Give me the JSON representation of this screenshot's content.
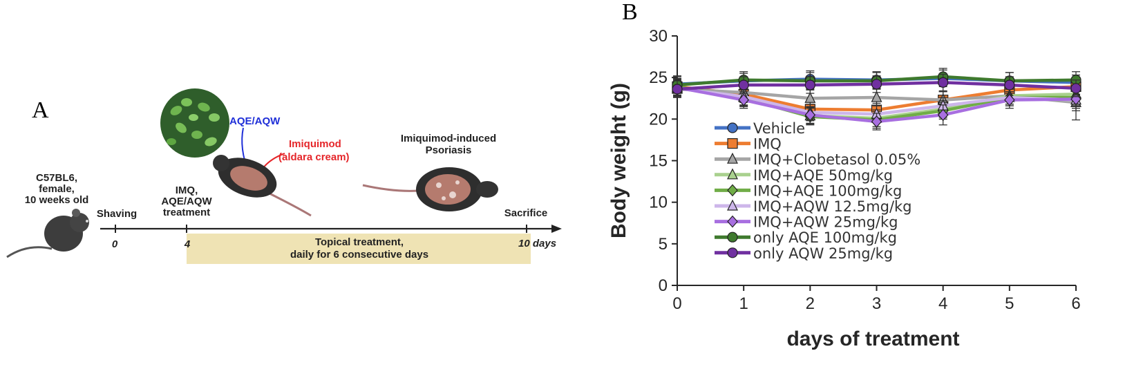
{
  "panel_a": {
    "letter": "A",
    "mouse_label": [
      "C57BL6,",
      "female,",
      "10 weeks old"
    ],
    "shaving_label": "Shaving",
    "imq_label": [
      "IMQ,",
      "AQE/AQW",
      "treatment"
    ],
    "aqe_aqw_label": "AQE/AQW",
    "imiquimod_label": [
      "Imiquimod",
      "(aldara cream)"
    ],
    "psoriasis_label": [
      "Imiquimod-induced",
      "Psoriasis"
    ],
    "sacrifice_label": "Sacrifice",
    "tick_0": "0",
    "tick_4": "4",
    "tick_10": "10 days",
    "treatment_box": [
      "Topical treatment,",
      "daily for 6 consecutive days"
    ],
    "colors": {
      "aqe": "#1f2fd8",
      "imiquimod": "#e5262a",
      "box": "#efe3b4"
    }
  },
  "chart_data": {
    "letter": "B",
    "type": "line",
    "xlabel": "days of treatment",
    "ylabel": "Body weight (g)",
    "x": [
      0,
      1,
      2,
      3,
      4,
      5,
      6
    ],
    "x_ticks": [
      "0",
      "1",
      "2",
      "3",
      "4",
      "5",
      "6"
    ],
    "ylim": [
      0,
      30
    ],
    "y_ticks": [
      "0",
      "5",
      "10",
      "15",
      "20",
      "25",
      "30"
    ],
    "grid": false,
    "legend_position": "center-left",
    "series": [
      {
        "name": "Vehicle",
        "color": "#4472c4",
        "marker": "circle",
        "values": [
          24.2,
          24.6,
          24.8,
          24.7,
          24.9,
          24.6,
          24.4
        ],
        "err": [
          1.0,
          0.9,
          1.0,
          1.0,
          1.0,
          1.0,
          0.9
        ]
      },
      {
        "name": "IMQ",
        "color": "#ed7d31",
        "marker": "square",
        "values": [
          23.9,
          23.0,
          21.2,
          21.1,
          22.3,
          23.5,
          23.9
        ],
        "err": [
          1.0,
          1.0,
          1.0,
          0.8,
          1.0,
          1.0,
          1.0
        ]
      },
      {
        "name": "IMQ+Clobetasol 0.05%",
        "color": "#a5a5a5",
        "marker": "triangle",
        "values": [
          23.6,
          23.2,
          22.5,
          22.6,
          22.3,
          22.8,
          22.0
        ],
        "err": [
          1.0,
          1.0,
          1.0,
          1.0,
          1.0,
          1.0,
          1.0
        ]
      },
      {
        "name": "IMQ+AQE 50mg/kg",
        "color": "#a9d18e",
        "marker": "triangle",
        "values": [
          23.8,
          22.6,
          20.4,
          20.1,
          21.2,
          22.8,
          23.0
        ],
        "err": [
          1.0,
          1.0,
          1.0,
          1.0,
          1.0,
          1.0,
          1.0
        ]
      },
      {
        "name": "IMQ+AQE 100mg/kg",
        "color": "#70ad47",
        "marker": "diamond",
        "values": [
          23.9,
          22.5,
          20.3,
          19.9,
          21.0,
          22.6,
          22.6
        ],
        "err": [
          1.0,
          1.0,
          1.0,
          1.0,
          1.0,
          1.0,
          1.0
        ]
      },
      {
        "name": "IMQ+AQW 12.5mg/kg",
        "color": "#cdb6ea",
        "marker": "triangle",
        "values": [
          23.7,
          22.7,
          20.8,
          20.6,
          21.6,
          22.6,
          22.3
        ],
        "err": [
          1.0,
          1.0,
          1.0,
          1.0,
          1.0,
          1.0,
          1.0
        ]
      },
      {
        "name": "IMQ+AQW 25mg/kg",
        "color": "#a86fe0",
        "marker": "diamond",
        "values": [
          23.8,
          22.3,
          20.5,
          19.7,
          20.5,
          22.3,
          22.4
        ],
        "err": [
          1.0,
          1.0,
          1.0,
          1.0,
          1.2,
          1.0,
          2.5
        ]
      },
      {
        "name": "only AQE 100mg/kg",
        "color": "#3f7a2e",
        "marker": "circle",
        "values": [
          24.1,
          24.7,
          24.6,
          24.6,
          25.1,
          24.6,
          24.7
        ],
        "err": [
          1.0,
          1.0,
          1.0,
          1.0,
          1.0,
          1.0,
          1.0
        ]
      },
      {
        "name": "only AQW 25mg/kg",
        "color": "#7030a0",
        "marker": "circle",
        "values": [
          23.6,
          24.1,
          24.1,
          24.2,
          24.4,
          24.1,
          23.7
        ],
        "err": [
          1.0,
          1.0,
          1.0,
          1.0,
          1.0,
          1.0,
          1.0
        ]
      }
    ]
  }
}
